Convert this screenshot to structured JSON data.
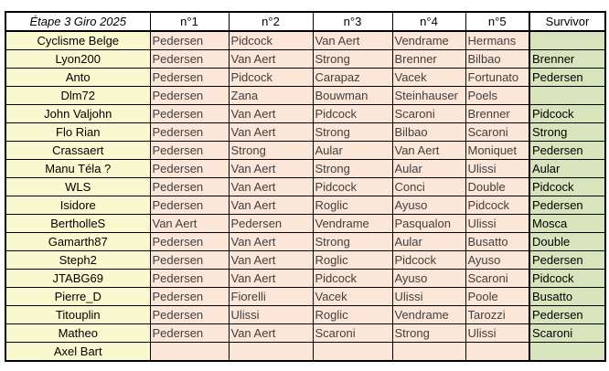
{
  "table": {
    "headers": [
      "Étape 3 Giro 2025",
      "n°1",
      "n°2",
      "n°3",
      "n°4",
      "n°5",
      "Survivor"
    ],
    "rows": [
      [
        "Cyclisme Belge",
        "Pedersen",
        "Pidcock",
        "Van Aert",
        "Vendrame",
        "Hermans",
        ""
      ],
      [
        "Lyon200",
        "Pedersen",
        "Van Aert",
        "Strong",
        "Brenner",
        "Bilbao",
        "Brenner"
      ],
      [
        "Anto",
        "Pedersen",
        "Pidcock",
        "Carapaz",
        "Vacek",
        "Fortunato",
        "Pedersen"
      ],
      [
        "Dlm72",
        "Pedersen",
        "Zana",
        "Bouwman",
        "Steinhauser",
        "Poels",
        ""
      ],
      [
        "John Valjohn",
        "Pedersen",
        "Van Aert",
        "Pidcock",
        "Scaroni",
        "Brenner",
        "Pidcock"
      ],
      [
        "Flo Rian",
        "Pedersen",
        "Van Aert",
        "Strong",
        "Bilbao",
        "Scaroni",
        "Strong"
      ],
      [
        "Crassaert",
        "Pedersen",
        "Strong",
        "Aular",
        "Van Aert",
        "Moniquet",
        "Pedersen"
      ],
      [
        "Manu Téla ?",
        "Pedersen",
        "Van Aert",
        "Strong",
        "Aular",
        "Ulissi",
        "Aular"
      ],
      [
        "WLS",
        "Pedersen",
        "Van Aert",
        "Pidcock",
        "Conci",
        "Double",
        "Pidcock"
      ],
      [
        "Isidore",
        "Pedersen",
        "Van Aert",
        "Roglic",
        "Ayuso",
        "Pidcock",
        "Pedersen"
      ],
      [
        "BertholleS",
        "Van Aert",
        "Pedersen",
        "Vendrame",
        "Pasqualon",
        "Ulissi",
        "Mosca"
      ],
      [
        "Gamarth87",
        "Pedersen",
        "Van Aert",
        "Strong",
        "Aular",
        "Busatto",
        "Double"
      ],
      [
        "Steph2",
        "Pedersen",
        "Van Aert",
        "Roglic",
        "Pidcock",
        "Ayuso",
        "Pedersen"
      ],
      [
        "JTABG69",
        "Pedersen",
        "Van Aert",
        "Pidcock",
        "Ayuso",
        "Scaroni",
        "Pidcock"
      ],
      [
        "Pierre_D",
        "Pedersen",
        "Fiorelli",
        "Vacek",
        "Ulissi",
        "Poole",
        "Busatto"
      ],
      [
        "Titouplin",
        "Pedersen",
        "Ulissi",
        "Roglic",
        "Vendrame",
        "Tarozzi",
        "Pedersen"
      ],
      [
        "Matheo",
        "Pedersen",
        "Van Aert",
        "Scaroni",
        "Strong",
        "Ulissi",
        "Scaroni"
      ],
      [
        "Axel Bart",
        "",
        "",
        "",
        "",
        "",
        ""
      ]
    ]
  },
  "colors": {
    "name_bg": "#f9f8cf",
    "pick_bg": "#fce6d8",
    "survivor_bg": "#d8e4bc"
  }
}
